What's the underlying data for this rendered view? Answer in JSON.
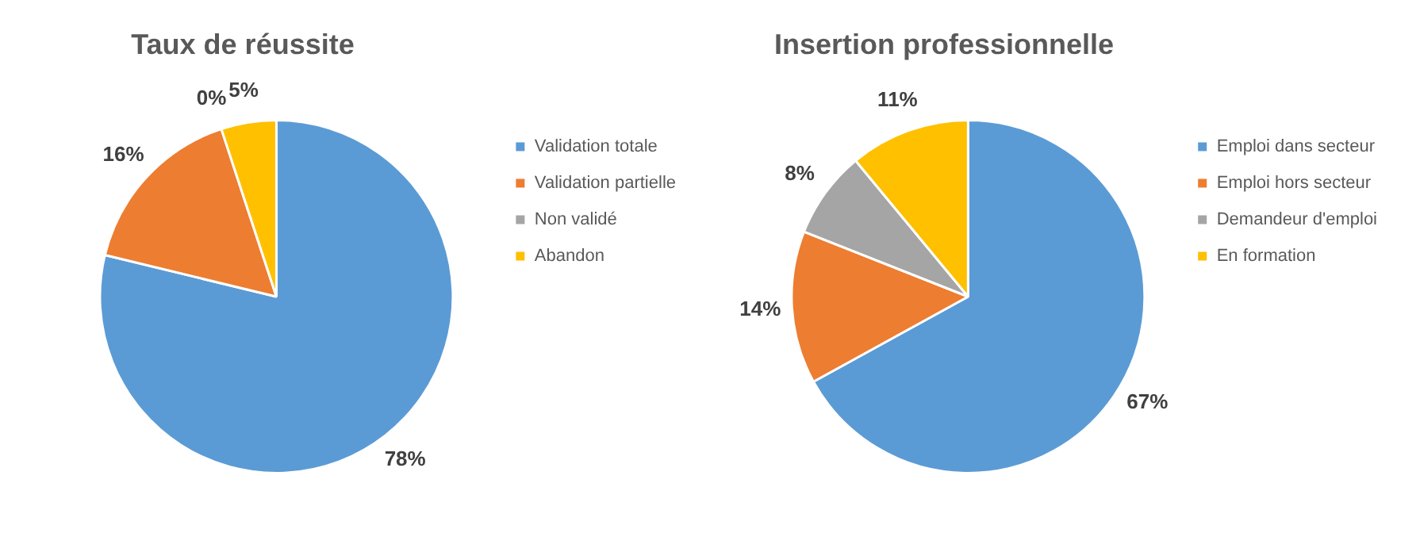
{
  "chart_data": [
    {
      "type": "pie",
      "title": "Taux de réussite",
      "categories": [
        "Validation totale",
        "Validation partielle",
        "Non validé",
        "Abandon"
      ],
      "values": [
        78,
        16,
        0,
        5
      ],
      "value_labels": [
        "78%",
        "16%",
        "0%",
        "5%"
      ],
      "colors": [
        "#5b9bd5",
        "#ed7d31",
        "#a5a5a5",
        "#ffc000"
      ],
      "legend": "right"
    },
    {
      "type": "pie",
      "title": "Insertion professionnelle",
      "categories": [
        "Emploi dans secteur",
        "Emploi hors secteur",
        "Demandeur d'emploi",
        "En formation"
      ],
      "values": [
        67,
        14,
        8,
        11
      ],
      "value_labels": [
        "67%",
        "14%",
        "8%",
        "11%"
      ],
      "colors": [
        "#5b9bd5",
        "#ed7d31",
        "#a5a5a5",
        "#ffc000"
      ],
      "legend": "right"
    }
  ]
}
